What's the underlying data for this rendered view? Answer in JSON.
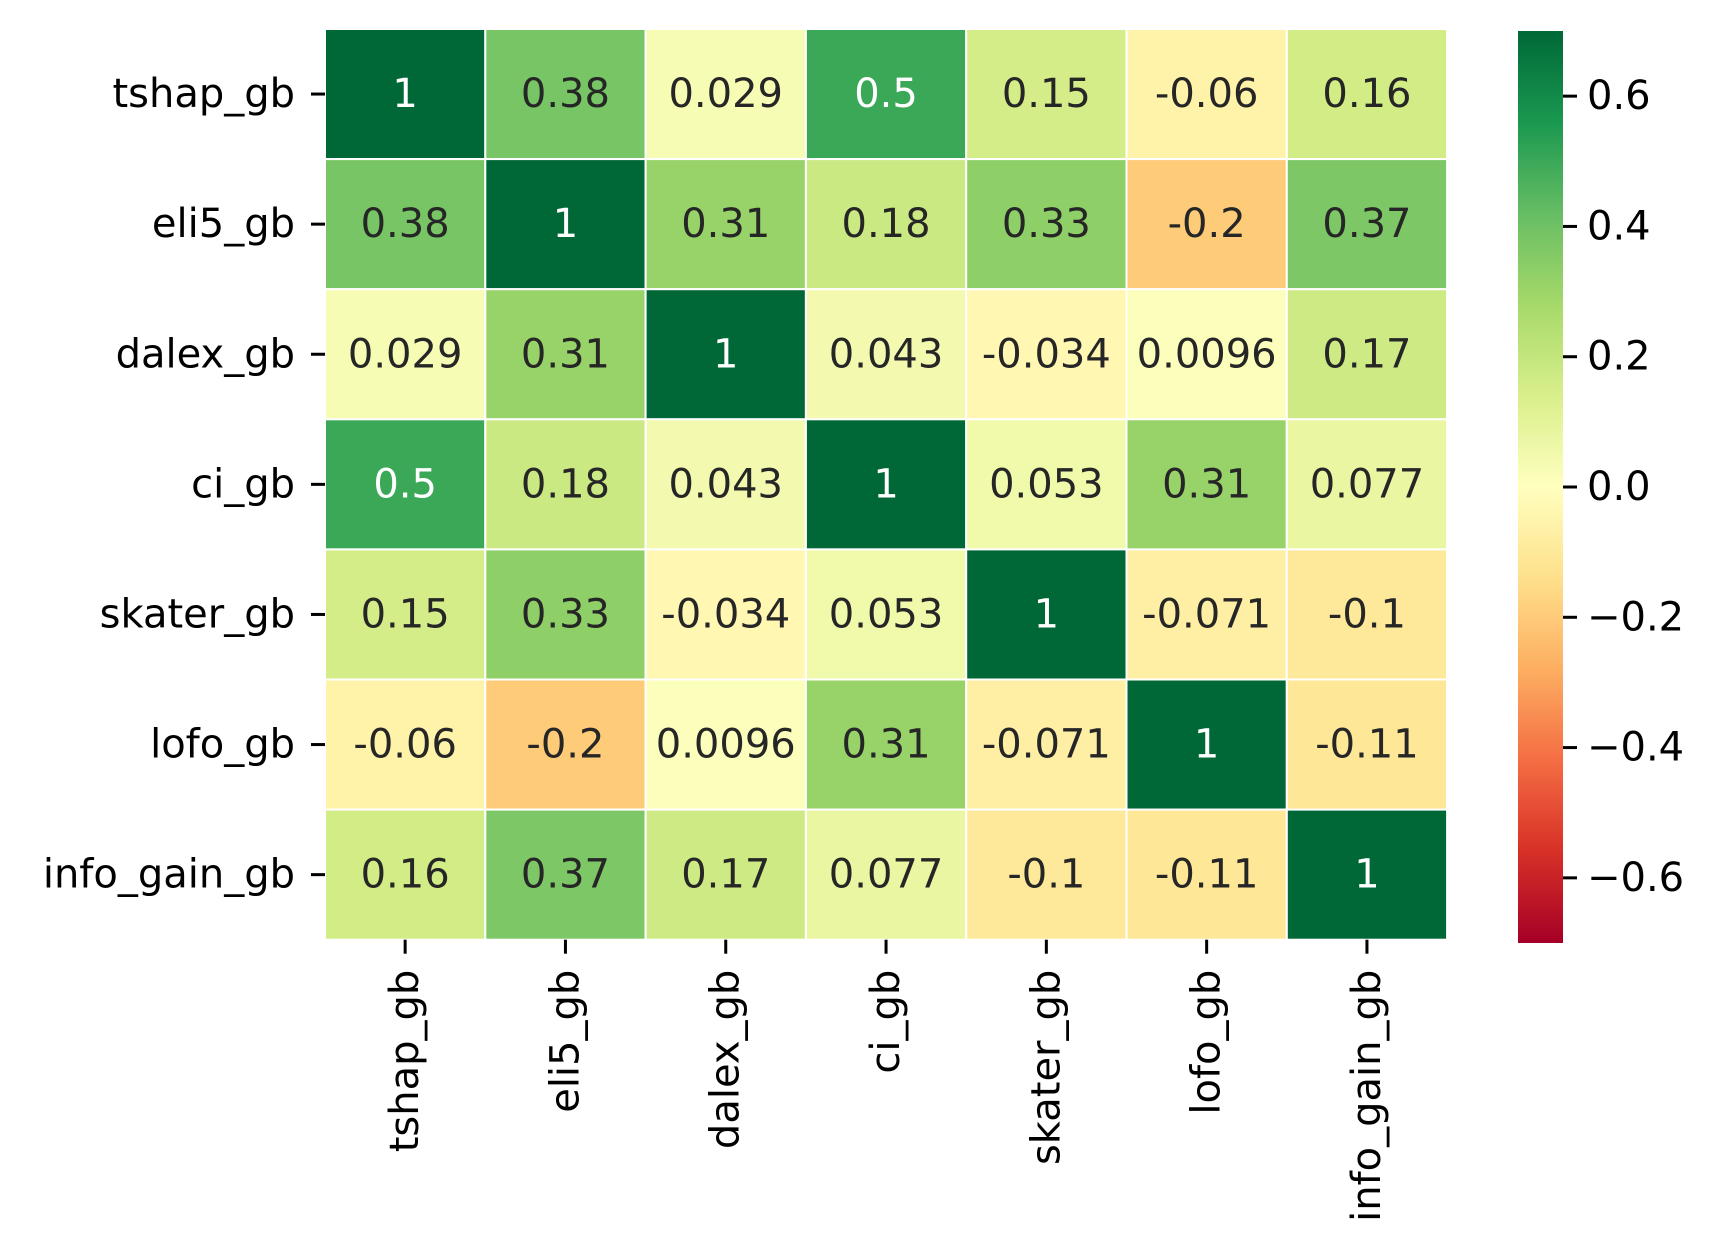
{
  "chart_data": {
    "type": "heatmap",
    "title": "",
    "xlabel": "",
    "ylabel": "",
    "x_labels": [
      "tshap_gb",
      "eli5_gb",
      "dalex_gb",
      "ci_gb",
      "skater_gb",
      "lofo_gb",
      "info_gain_gb"
    ],
    "y_labels": [
      "tshap_gb",
      "eli5_gb",
      "dalex_gb",
      "ci_gb",
      "skater_gb",
      "lofo_gb",
      "info_gain_gb"
    ],
    "values": [
      [
        1,
        0.38,
        0.029,
        0.5,
        0.15,
        -0.06,
        0.16
      ],
      [
        0.38,
        1,
        0.31,
        0.18,
        0.33,
        -0.2,
        0.37
      ],
      [
        0.029,
        0.31,
        1,
        0.043,
        -0.034,
        0.0096,
        0.17
      ],
      [
        0.5,
        0.18,
        0.043,
        1,
        0.053,
        0.31,
        0.077
      ],
      [
        0.15,
        0.33,
        -0.034,
        0.053,
        1,
        -0.071,
        -0.1
      ],
      [
        -0.06,
        -0.2,
        0.0096,
        0.31,
        -0.071,
        1,
        -0.11
      ],
      [
        0.16,
        0.37,
        0.17,
        0.077,
        -0.1,
        -0.11,
        1
      ]
    ],
    "annotations": [
      [
        "1",
        "0.38",
        "0.029",
        "0.5",
        "0.15",
        "-0.06",
        "0.16"
      ],
      [
        "0.38",
        "1",
        "0.31",
        "0.18",
        "0.33",
        "-0.2",
        "0.37"
      ],
      [
        "0.029",
        "0.31",
        "1",
        "0.043",
        "-0.034",
        "0.0096",
        "0.17"
      ],
      [
        "0.5",
        "0.18",
        "0.043",
        "1",
        "0.053",
        "0.31",
        "0.077"
      ],
      [
        "0.15",
        "0.33",
        "-0.034",
        "0.053",
        "1",
        "-0.071",
        "-0.1"
      ],
      [
        "-0.06",
        "-0.2",
        "0.0096",
        "0.31",
        "-0.071",
        "1",
        "-0.11"
      ],
      [
        "0.16",
        "0.37",
        "0.17",
        "0.077",
        "-0.1",
        "-0.11",
        "1"
      ]
    ],
    "colormap": "RdYlGn",
    "colorbar": {
      "vmin": -0.7,
      "vmax": 0.7,
      "ticks": [
        0.6,
        0.4,
        0.2,
        0.0,
        -0.2,
        -0.4,
        -0.6
      ],
      "tick_labels": [
        "0.6",
        "0.4",
        "0.2",
        "0.0",
        "−0.2",
        "−0.4",
        "−0.6"
      ]
    },
    "colorscale_stops": [
      "#a50026",
      "#d73027",
      "#f46d43",
      "#fdae61",
      "#fee08b",
      "#ffffbf",
      "#d9ef8b",
      "#a6d96a",
      "#66bd63",
      "#1a9850",
      "#006837"
    ],
    "cell_border_color": "#ffffff",
    "grid": false,
    "legend": "colorbar-right"
  }
}
